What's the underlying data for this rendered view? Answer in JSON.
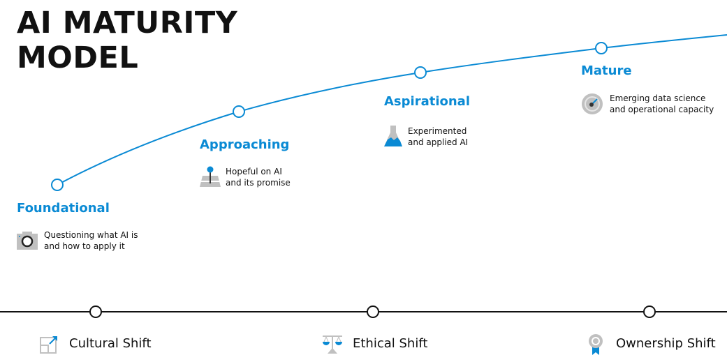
{
  "title_line1": "AI MATURITY",
  "title_line2": "MODEL",
  "stages": [
    {
      "label": "Foundational",
      "desc1": "Questioning what AI is",
      "desc2": "and how to apply it",
      "icon": "camera-icon"
    },
    {
      "label": "Approaching",
      "desc1": "Hopeful on AI",
      "desc2": "and its promise",
      "icon": "map-pin-icon"
    },
    {
      "label": "Aspirational",
      "desc1": "Experimented",
      "desc2": "and applied AI",
      "icon": "flask-icon"
    },
    {
      "label": "Mature",
      "desc1": "Emerging data science",
      "desc2": "and operational capacity",
      "icon": "gauge-icon"
    }
  ],
  "shifts": [
    {
      "label": "Cultural Shift",
      "icon": "expand-icon"
    },
    {
      "label": "Ethical Shift",
      "icon": "scales-icon"
    },
    {
      "label": "Ownership Shift",
      "icon": "award-ribbon-icon"
    }
  ],
  "colors": {
    "accent": "#0a8ad4",
    "icon_gray": "#c0c0c0",
    "text": "#111111"
  }
}
